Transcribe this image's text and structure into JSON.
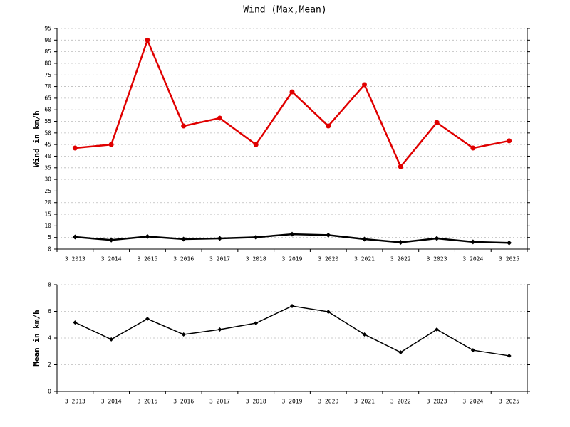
{
  "chart_data": [
    {
      "type": "line",
      "title": "Wind (Max,Mean)",
      "y_label": "Wind in km/h",
      "categories": [
        "3 2013",
        "3 2014",
        "3 2015",
        "3 2016",
        "3 2017",
        "3 2018",
        "3 2019",
        "3 2020",
        "3 2021",
        "3 2022",
        "3 2023",
        "3 2024",
        "3 2025"
      ],
      "series": [
        {
          "color": "#e00000",
          "marker": "circle",
          "values": [
            43.5,
            45,
            90,
            53,
            56.4,
            45,
            67.7,
            53,
            70.8,
            35.5,
            54.5,
            43.5,
            46.6
          ]
        },
        {
          "color": "#000000",
          "marker": "diamond",
          "values": [
            5.2,
            3.9,
            5.4,
            4.3,
            4.6,
            5.1,
            6.4,
            6.0,
            4.3,
            2.9,
            4.6,
            3.1,
            2.7
          ]
        }
      ],
      "ylim": [
        0,
        95
      ],
      "yticks": [
        0,
        5,
        10,
        15,
        20,
        25,
        30,
        35,
        40,
        45,
        50,
        55,
        60,
        65,
        70,
        75,
        80,
        85,
        90,
        95
      ],
      "grid": true
    },
    {
      "type": "line",
      "y_label": "Mean in km/h",
      "categories": [
        "3 2013",
        "3 2014",
        "3 2015",
        "3 2016",
        "3 2017",
        "3 2018",
        "3 2019",
        "3 2020",
        "3 2021",
        "3 2022",
        "3 2023",
        "3 2024",
        "3 2025"
      ],
      "series": [
        {
          "color": "#000000",
          "marker": "diamond",
          "values": [
            5.17,
            3.9,
            5.44,
            4.27,
            4.64,
            5.12,
            6.4,
            5.97,
            4.27,
            2.93,
            4.64,
            3.09,
            2.67
          ]
        }
      ],
      "ylim": [
        0,
        8
      ],
      "yticks": [
        0,
        2,
        4,
        6,
        8
      ],
      "grid": true
    }
  ]
}
